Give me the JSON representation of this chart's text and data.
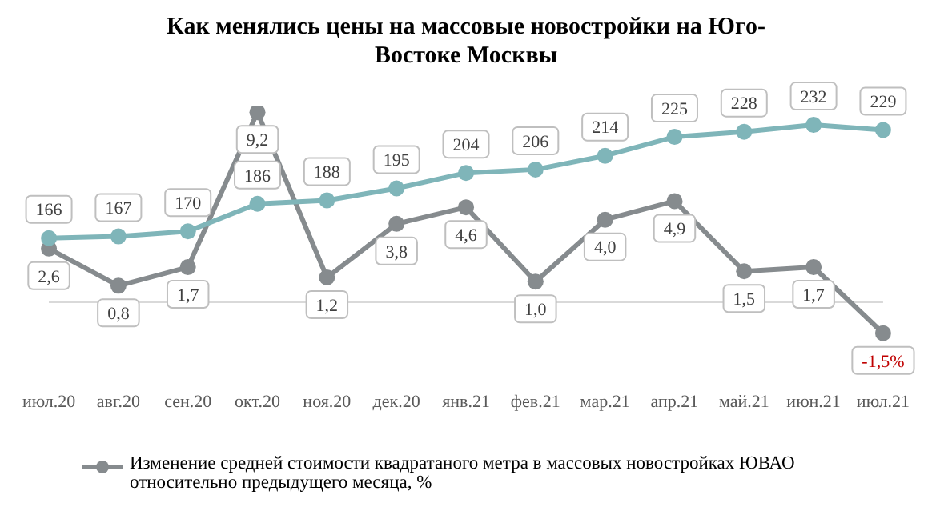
{
  "chart_data": {
    "type": "line",
    "title": "Как менялись цены на массовые новостройки на Юго-Востоке Москвы",
    "categories": [
      "июл.20",
      "авг.20",
      "сен.20",
      "окт.20",
      "ноя.20",
      "дек.20",
      "янв.21",
      "фев.21",
      "мар.21",
      "апр.21",
      "май.21",
      "июн.21",
      "июл.21"
    ],
    "series": [
      {
        "color": "#7fb5b9",
        "axis": "y2",
        "values": [
          166,
          167,
          170,
          186,
          188,
          195,
          204,
          206,
          214,
          225,
          228,
          232,
          229
        ],
        "value_labels": [
          "166",
          "167",
          "170",
          "186",
          "188",
          "195",
          "204",
          "206",
          "214",
          "225",
          "228",
          "232",
          "229"
        ]
      },
      {
        "name": "Изменение средней стоимости квадратаного метра в массовых новостройках ЮВАО относительно предыдущего месяца, %",
        "color": "#868b8e",
        "values": [
          2.6,
          0.8,
          1.7,
          9.2,
          1.2,
          3.8,
          4.6,
          1.0,
          4.0,
          4.9,
          1.5,
          1.7,
          -1.5
        ],
        "value_labels": [
          "2,6",
          "0,8",
          "1,7",
          "9,2",
          "1,2",
          "3,8",
          "4,6",
          "1,0",
          "4,0",
          "4,9",
          "1,5",
          "1,7",
          "-1,5%"
        ]
      }
    ],
    "marker": "circle",
    "legend": "bottom",
    "grid": false
  }
}
